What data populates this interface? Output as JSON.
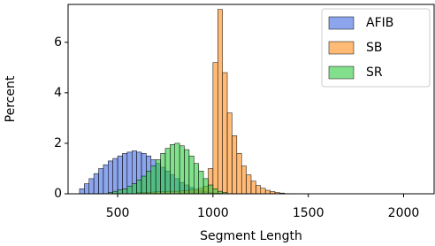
{
  "chart_data": {
    "type": "histogram",
    "xlabel": "Segment Length",
    "ylabel": "Percent",
    "bins": [
      300,
      325,
      350,
      375,
      400,
      425,
      450,
      475,
      500,
      525,
      550,
      575,
      600,
      625,
      650,
      675,
      700,
      725,
      750,
      775,
      800,
      825,
      850,
      875,
      900,
      925,
      950,
      975,
      1000,
      1025,
      1050,
      1075,
      1100,
      1125,
      1150,
      1175,
      1200,
      1225,
      1250,
      1275,
      1300,
      1325,
      1350,
      1375,
      1400
    ],
    "series": [
      {
        "name": "AFIB",
        "color": "#4169e1",
        "values": [
          0.2,
          0.4,
          0.6,
          0.8,
          1.0,
          1.15,
          1.3,
          1.4,
          1.5,
          1.6,
          1.65,
          1.7,
          1.65,
          1.6,
          1.5,
          1.35,
          1.2,
          1.05,
          0.9,
          0.75,
          0.6,
          0.45,
          0.35,
          0.25,
          0.18,
          0.12,
          0.08,
          0.05,
          0.03,
          0.02,
          0,
          0,
          0,
          0,
          0,
          0,
          0,
          0,
          0,
          0,
          0,
          0,
          0,
          0
        ]
      },
      {
        "name": "SB",
        "color": "#ff8c1a",
        "values": [
          0,
          0,
          0,
          0,
          0,
          0,
          0,
          0,
          0,
          0,
          0,
          0,
          0.05,
          0.05,
          0.06,
          0.07,
          0.08,
          0.08,
          0.09,
          0.1,
          0.1,
          0.12,
          0.13,
          0.15,
          0.18,
          0.22,
          0.3,
          1.0,
          5.2,
          7.3,
          4.8,
          3.2,
          2.3,
          1.6,
          1.1,
          0.75,
          0.5,
          0.33,
          0.22,
          0.14,
          0.09,
          0.05,
          0.03,
          0.01
        ]
      },
      {
        "name": "SR",
        "color": "#2ecc40",
        "values": [
          0,
          0,
          0,
          0,
          0,
          0,
          0.05,
          0.1,
          0.15,
          0.2,
          0.3,
          0.4,
          0.55,
          0.7,
          0.9,
          1.1,
          1.35,
          1.6,
          1.8,
          1.95,
          2.0,
          1.9,
          1.75,
          1.5,
          1.2,
          0.9,
          0.6,
          0.35,
          0.2,
          0.1,
          0.05,
          0,
          0,
          0,
          0,
          0,
          0,
          0,
          0,
          0,
          0,
          0,
          0,
          0
        ]
      }
    ],
    "xlim": [
      240,
      2160
    ],
    "ylim": [
      0,
      7.5
    ],
    "xticks": [
      500,
      1000,
      1500,
      2000
    ],
    "yticks": [
      0,
      2,
      4,
      6
    ],
    "legend": "upper right"
  }
}
